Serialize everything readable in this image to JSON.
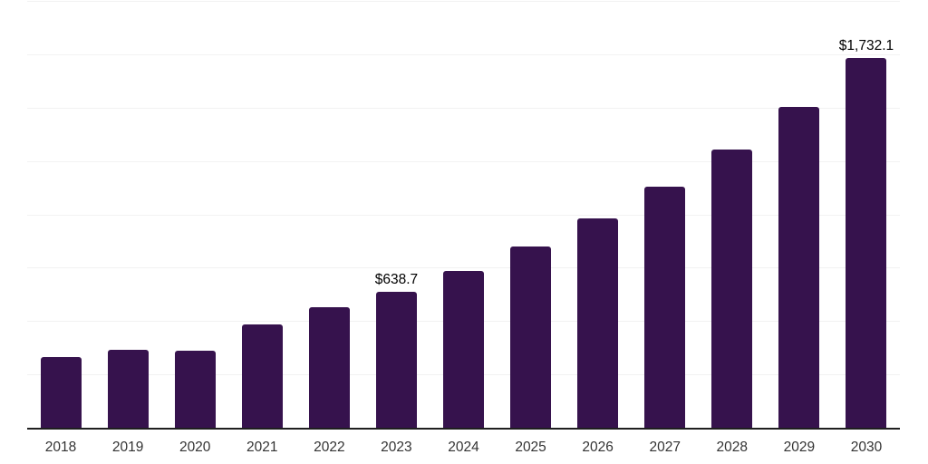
{
  "chart_data": {
    "type": "bar",
    "title": "",
    "xlabel": "",
    "ylabel": "",
    "categories": [
      "2018",
      "2019",
      "2020",
      "2021",
      "2022",
      "2023",
      "2024",
      "2025",
      "2026",
      "2027",
      "2028",
      "2029",
      "2030"
    ],
    "values": [
      333,
      367,
      363,
      486,
      566,
      638.7,
      736.5,
      849.4,
      979.5,
      1129.6,
      1302.6,
      1502.1,
      1732.1
    ],
    "point_labels": [
      "",
      "",
      "",
      "",
      "",
      "$638.7",
      "",
      "",
      "",
      "",
      "",
      "",
      "$1,732.1"
    ],
    "ylim": [
      0,
      2000
    ],
    "grid_interval": 250,
    "grid_visible": true,
    "legend_position": "none",
    "colors": {
      "bar": "#36124d",
      "grid": "#f2f2f2",
      "axis_line": "#1f1f1f",
      "tick_label": "#333333",
      "data_label": "#000000",
      "background": "#ffffff"
    }
  }
}
